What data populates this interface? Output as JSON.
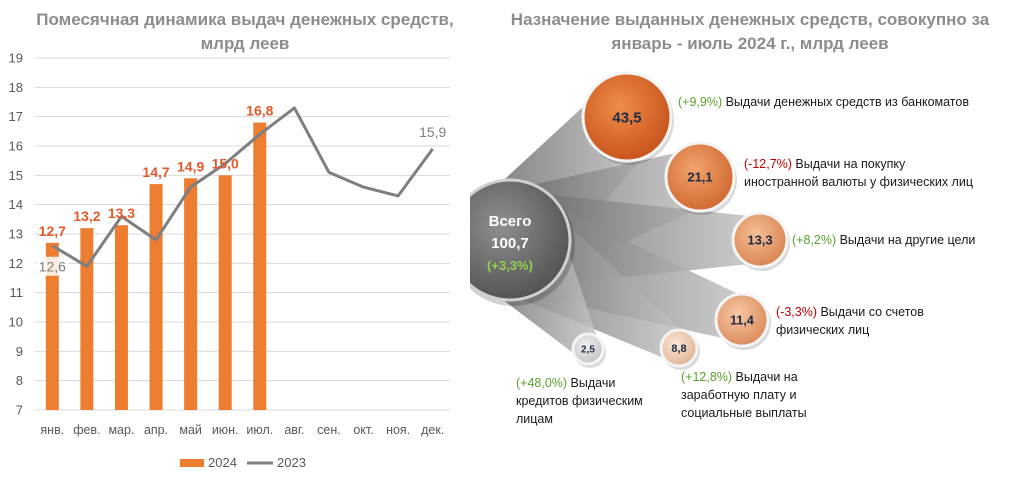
{
  "left_title": "Помесячная динамика выдач денежных средств, млрд леев",
  "right_title": "Назначение выданных денежных средств, совокупно за январь - июль 2024 г., млрд леев",
  "colors": {
    "bar_2024": "#ed7d31",
    "line_2023": "#7f7f7f",
    "label_2024": "#e15a2b",
    "label_2023": "#7f7f7f",
    "pos": "#5aa02c",
    "neg": "#c00000"
  },
  "chart_data": [
    {
      "type": "bar",
      "title": "Помесячная динамика выдач денежных средств, млрд леев",
      "categories": [
        "янв.",
        "фев.",
        "мар.",
        "апр.",
        "май",
        "июн.",
        "июл.",
        "авг.",
        "сен.",
        "окт.",
        "ноя.",
        "дек."
      ],
      "ylim": [
        7,
        19
      ],
      "yticks": [
        "7",
        "8",
        "9",
        "10",
        "11",
        "12",
        "13",
        "14",
        "15",
        "16",
        "17",
        "18",
        "19"
      ],
      "grid": true,
      "legend_position": "bottom",
      "series": [
        {
          "name": "2024",
          "type": "bar",
          "values": [
            12.7,
            13.2,
            13.3,
            14.7,
            14.9,
            15.0,
            16.8,
            null,
            null,
            null,
            null,
            null
          ],
          "labels": [
            "12,7",
            "13,2",
            "13,3",
            "14,7",
            "14,9",
            "15,0",
            "16,8",
            "",
            "",
            "",
            "",
            ""
          ]
        },
        {
          "name": "2023",
          "type": "line",
          "values": [
            12.6,
            11.9,
            13.6,
            12.8,
            14.6,
            15.4,
            16.4,
            17.3,
            15.1,
            14.6,
            14.3,
            15.9
          ],
          "labels": [
            "12,6",
            "",
            "",
            "",
            "",
            "",
            "",
            "",
            "",
            "",
            "",
            "15,9"
          ]
        }
      ]
    },
    {
      "type": "bubble",
      "title": "Назначение выданных денежных средств, совокупно за январь - июль 2024 г., млрд леев",
      "center": {
        "label": "Всего",
        "value": "100,7",
        "change": "(+3,3%)"
      },
      "items": [
        {
          "value": "43,5",
          "change": "(+9,9%)",
          "sign": "pos",
          "label": [
            "Выдачи денежных средств из банкоматов"
          ]
        },
        {
          "value": "21,1",
          "change": "(-12,7%)",
          "sign": "neg",
          "label": [
            "Выдачи на покупку",
            "иностранной валюты у физических лиц"
          ]
        },
        {
          "value": "13,3",
          "change": "(+8,2%)",
          "sign": "pos",
          "label": [
            "Выдачи на другие цели"
          ]
        },
        {
          "value": "11,4",
          "change": "(-3,3%)",
          "sign": "neg",
          "label": [
            "Выдачи со счетов",
            "физических лиц"
          ]
        },
        {
          "value": "8,8",
          "change": "(+12,8%)",
          "sign": "pos",
          "label": [
            "Выдачи на",
            "заработную плату и",
            "социальные выплаты"
          ]
        },
        {
          "value": "2,5",
          "change": "(+48,0%)",
          "sign": "pos",
          "label": [
            "Выдачи",
            "кредитов физическим",
            "лицам"
          ]
        }
      ]
    }
  ]
}
